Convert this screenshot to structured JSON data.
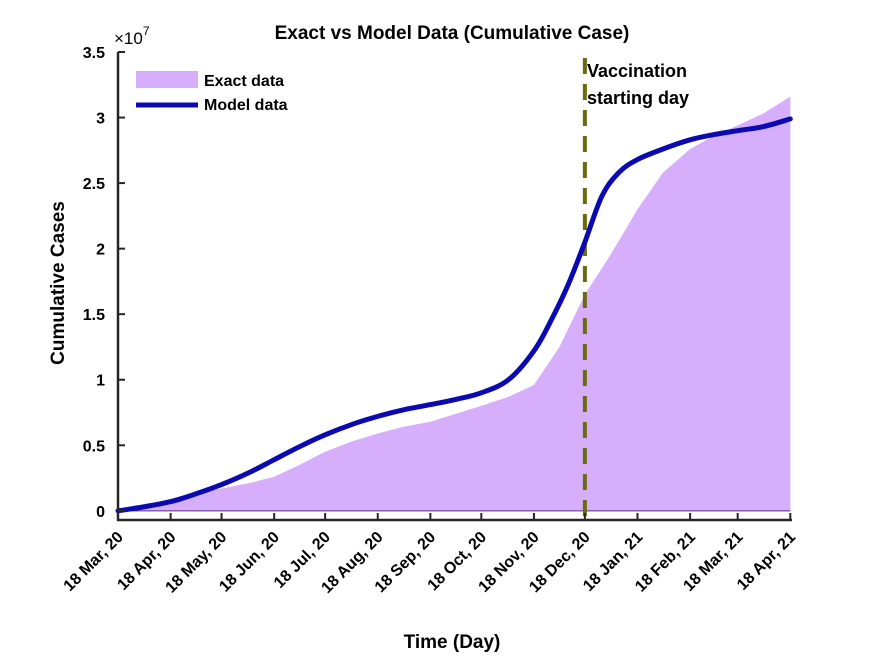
{
  "chart_data": {
    "type": "area",
    "title": "Exact vs Model Data (Cumulative Case)",
    "xlabel": "Time (Day)",
    "ylabel": "Cumulative Cases",
    "y_exponent_label": "×10",
    "y_exponent_power": "7",
    "y_scale": 10000000,
    "xlim": [
      0,
      397
    ],
    "ylim": [
      -0.07,
      3.5
    ],
    "x_ticks": [
      {
        "x": 0,
        "label": "18 Mar, 20"
      },
      {
        "x": 31,
        "label": "18 Apr, 20"
      },
      {
        "x": 61,
        "label": "18 May, 20"
      },
      {
        "x": 92,
        "label": "18 Jun, 20"
      },
      {
        "x": 122,
        "label": "18 Jul, 20"
      },
      {
        "x": 153,
        "label": "18 Aug, 20"
      },
      {
        "x": 184,
        "label": "18 Sep, 20"
      },
      {
        "x": 214,
        "label": "18 Oct, 20"
      },
      {
        "x": 245,
        "label": "18 Nov, 20"
      },
      {
        "x": 275,
        "label": "18 Dec, 20"
      },
      {
        "x": 306,
        "label": "18 Jan, 21"
      },
      {
        "x": 337,
        "label": "18 Feb, 21"
      },
      {
        "x": 365,
        "label": "18 Mar, 21"
      },
      {
        "x": 396,
        "label": "18 Apr, 21"
      }
    ],
    "y_ticks": [
      {
        "y": 0,
        "label": "0"
      },
      {
        "y": 0.5,
        "label": "0.5"
      },
      {
        "y": 1,
        "label": "1"
      },
      {
        "y": 1.5,
        "label": "1.5"
      },
      {
        "y": 2,
        "label": "2"
      },
      {
        "y": 2.5,
        "label": "2.5"
      },
      {
        "y": 3,
        "label": "3"
      },
      {
        "y": 3.5,
        "label": "3.5"
      }
    ],
    "series": [
      {
        "name": "Exact data",
        "kind": "area",
        "color": "#d6aefc",
        "x": [
          0,
          15,
          31,
          46,
          61,
          77,
          92,
          107,
          122,
          138,
          153,
          168,
          184,
          199,
          214,
          230,
          245,
          260,
          275,
          290,
          306,
          321,
          337,
          351,
          365,
          380,
          396
        ],
        "y": [
          0.0,
          0.03,
          0.08,
          0.13,
          0.17,
          0.21,
          0.26,
          0.35,
          0.45,
          0.53,
          0.59,
          0.64,
          0.68,
          0.74,
          0.8,
          0.87,
          0.96,
          1.25,
          1.65,
          1.95,
          2.3,
          2.58,
          2.76,
          2.86,
          2.94,
          3.03,
          3.16
        ]
      },
      {
        "name": "Model data",
        "kind": "line",
        "color": "#0a0ab0",
        "x": [
          0,
          15,
          31,
          46,
          61,
          77,
          92,
          107,
          122,
          138,
          153,
          168,
          184,
          199,
          214,
          230,
          245,
          255,
          265,
          275,
          285,
          295,
          306,
          321,
          337,
          351,
          365,
          380,
          396
        ],
        "y": [
          0.0,
          0.03,
          0.07,
          0.13,
          0.2,
          0.29,
          0.39,
          0.49,
          0.58,
          0.66,
          0.72,
          0.77,
          0.81,
          0.85,
          0.9,
          1.0,
          1.22,
          1.45,
          1.72,
          2.05,
          2.4,
          2.58,
          2.68,
          2.76,
          2.83,
          2.87,
          2.9,
          2.93,
          2.99
        ]
      }
    ],
    "vline": {
      "x": 275,
      "color": "#6b6b0e",
      "label_line1": "Vaccination",
      "label_line2": "starting day"
    },
    "legend_position": "top-left"
  }
}
